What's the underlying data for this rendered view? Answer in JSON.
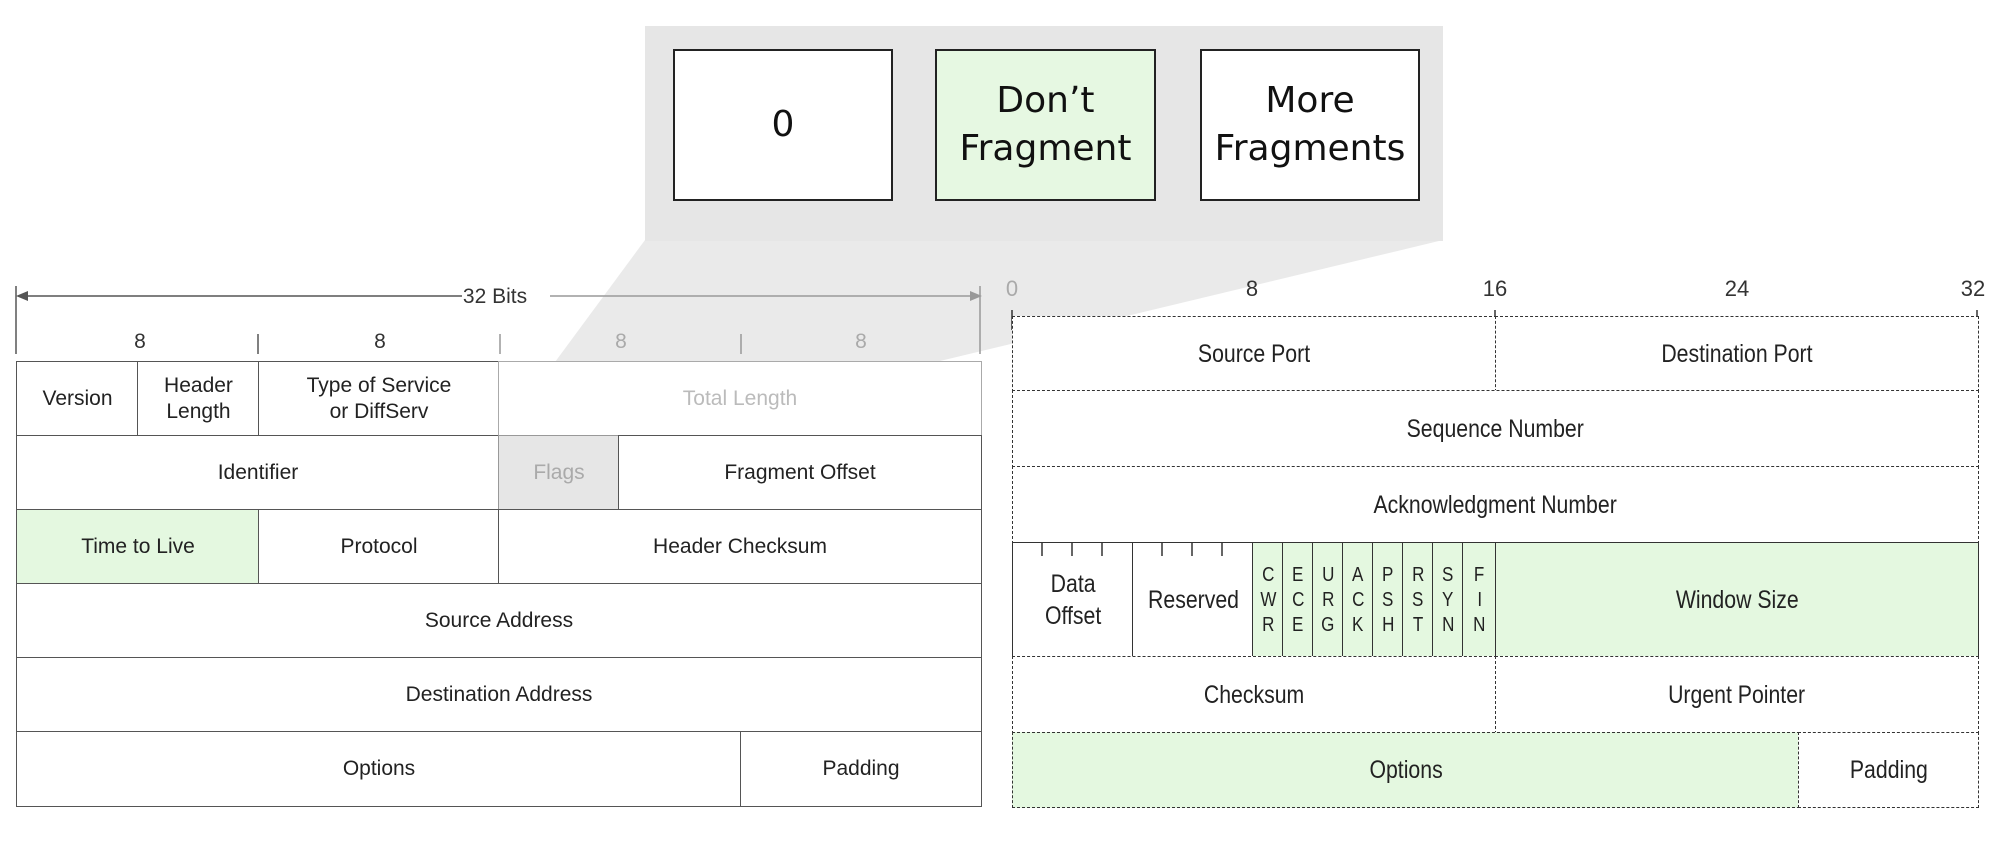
{
  "flags_zoom": {
    "boxes": [
      {
        "label": "0"
      },
      {
        "label_line1": "Don’t",
        "label_line2": "Fragment"
      },
      {
        "label_line1": "More",
        "label_line2": "Fragments"
      }
    ]
  },
  "ipv4": {
    "width_label": "32 Bits",
    "byte_labels": [
      "8",
      "8",
      "8",
      "8"
    ],
    "fields": {
      "version": "Version",
      "header_length_1": "Header",
      "header_length_2": "Length",
      "tos_1": "Type of Service",
      "tos_2": "or DiffServ",
      "total_length": "Total Length",
      "identifier": "Identifier",
      "flags": "Flags",
      "fragment_offset": "Fragment Offset",
      "ttl": "Time to Live",
      "protocol": "Protocol",
      "header_checksum": "Header Checksum",
      "source_address": "Source Address",
      "destination_address": "Destination Address",
      "options": "Options",
      "padding": "Padding"
    }
  },
  "tcp": {
    "bit_ticks": [
      "0",
      "8",
      "16",
      "24",
      "32"
    ],
    "fields": {
      "source_port": "Source Port",
      "destination_port": "Destination Port",
      "sequence_number": "Sequence Number",
      "ack_number": "Acknowledgment Number",
      "data_offset_1": "Data",
      "data_offset_2": "Offset",
      "reserved": "Reserved",
      "window_size": "Window Size",
      "checksum": "Checksum",
      "urgent_pointer": "Urgent Pointer",
      "options": "Options",
      "padding": "Padding"
    },
    "flags": [
      {
        "l1": "C",
        "l2": "W",
        "l3": "R"
      },
      {
        "l1": "E",
        "l2": "C",
        "l3": "E"
      },
      {
        "l1": "U",
        "l2": "R",
        "l3": "G"
      },
      {
        "l1": "A",
        "l2": "C",
        "l3": "K"
      },
      {
        "l1": "P",
        "l2": "S",
        "l3": "H"
      },
      {
        "l1": "R",
        "l2": "S",
        "l3": "T"
      },
      {
        "l1": "S",
        "l2": "Y",
        "l3": "N"
      },
      {
        "l1": "F",
        "l2": "I",
        "l3": "N"
      }
    ]
  },
  "colors": {
    "highlight_green": "#e4f8e0",
    "zoom_gray": "#e6e6e6"
  }
}
